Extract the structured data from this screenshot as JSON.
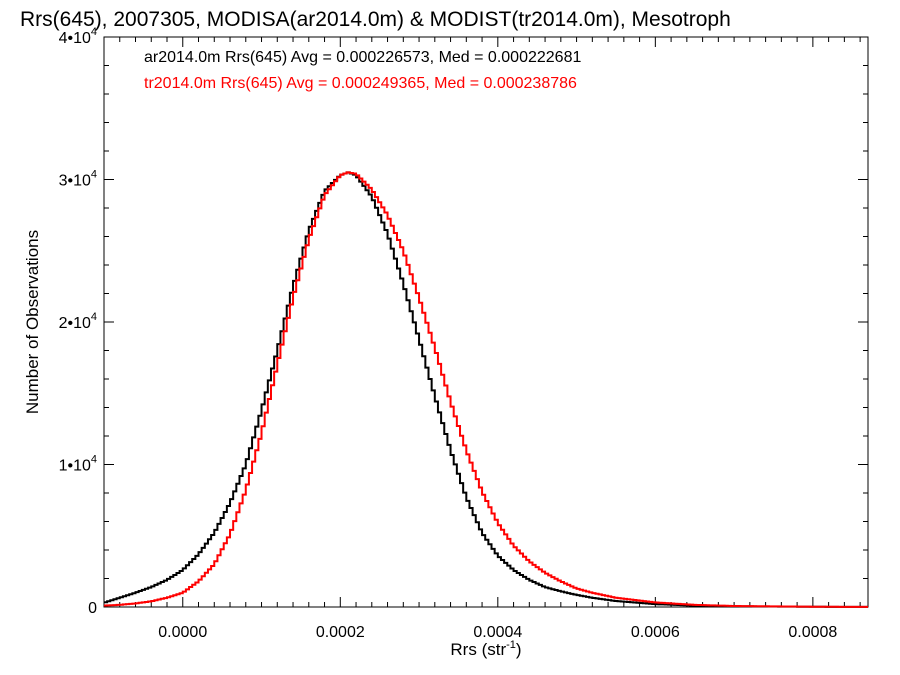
{
  "chart_data": {
    "type": "line",
    "title": "Rrs(645), 2007305, MODISA(ar2014.0m) & MODIST(tr2014.0m), Mesotroph",
    "xlabel": {
      "text": "Rrs (str",
      "sup": "-1",
      "tail": ")"
    },
    "ylabel": "Number of Observations",
    "xlim": [
      -0.0001,
      0.00087
    ],
    "ylim": [
      0,
      40000
    ],
    "xticks": [
      {
        "value": 0.0,
        "label": "0.0000"
      },
      {
        "value": 0.0002,
        "label": "0.0002"
      },
      {
        "value": 0.0004,
        "label": "0.0004"
      },
      {
        "value": 0.0006,
        "label": "0.0006"
      },
      {
        "value": 0.0008,
        "label": "0.0008"
      }
    ],
    "yticks": [
      {
        "value": 0,
        "base": "0",
        "exp": ""
      },
      {
        "value": 10000,
        "base": "1•10",
        "exp": "4"
      },
      {
        "value": 20000,
        "base": "2•10",
        "exp": "4"
      },
      {
        "value": 30000,
        "base": "3•10",
        "exp": "4"
      },
      {
        "value": 40000,
        "base": "4•10",
        "exp": "4"
      }
    ],
    "grid": false,
    "legend_position": "top-left",
    "series": [
      {
        "name": "ar2014.0m Rrs(645) Avg = 0.000226573, Med = 0.000222681",
        "color": "#000000",
        "curve": {
          "x": [
            -0.0001,
            -8e-05,
            -6e-05,
            -4e-05,
            -2e-05,
            0.0,
            2e-05,
            4e-05,
            6e-05,
            8e-05,
            0.0001,
            0.00012,
            0.00014,
            0.00016,
            0.00018,
            0.0002,
            0.00021,
            0.00022,
            0.00024,
            0.00026,
            0.00028,
            0.0003,
            0.00032,
            0.00034,
            0.00036,
            0.00038,
            0.0004,
            0.00042,
            0.00044,
            0.00046,
            0.00048,
            0.0005,
            0.00052,
            0.00055,
            0.0006,
            0.00065,
            0.0007,
            0.0008,
            0.00087
          ],
          "y": [
            300,
            650,
            1000,
            1400,
            1900,
            2600,
            3700,
            5200,
            7300,
            10000,
            13800,
            18000,
            22500,
            26400,
            29200,
            30300,
            30500,
            30300,
            28800,
            26200,
            22700,
            18800,
            14800,
            11000,
            7700,
            5200,
            3600,
            2600,
            1900,
            1400,
            1100,
            850,
            650,
            420,
            200,
            100,
            50,
            15,
            5
          ]
        }
      },
      {
        "name": "tr2014.0m Rrs(645) Avg = 0.000249365, Med = 0.000238786",
        "color": "#ff0000",
        "curve": {
          "x": [
            -0.0001,
            -8e-05,
            -6e-05,
            -4e-05,
            -2e-05,
            0.0,
            2e-05,
            4e-05,
            6e-05,
            8e-05,
            0.0001,
            0.00012,
            0.00014,
            0.00016,
            0.00018,
            0.0002,
            0.00021,
            0.00022,
            0.00024,
            0.00026,
            0.00028,
            0.0003,
            0.00032,
            0.00034,
            0.00036,
            0.00038,
            0.0004,
            0.00042,
            0.00044,
            0.00046,
            0.00048,
            0.0005,
            0.00052,
            0.00055,
            0.0006,
            0.00065,
            0.0007,
            0.0008,
            0.00087
          ],
          "y": [
            100,
            150,
            250,
            400,
            650,
            1000,
            1800,
            3000,
            5100,
            8200,
            12200,
            17000,
            21700,
            25800,
            28900,
            30300,
            30500,
            30400,
            29300,
            27500,
            25000,
            21700,
            18200,
            14400,
            11000,
            8100,
            5900,
            4300,
            3200,
            2400,
            1800,
            1300,
            1000,
            650,
            320,
            150,
            70,
            20,
            5
          ]
        }
      }
    ]
  }
}
